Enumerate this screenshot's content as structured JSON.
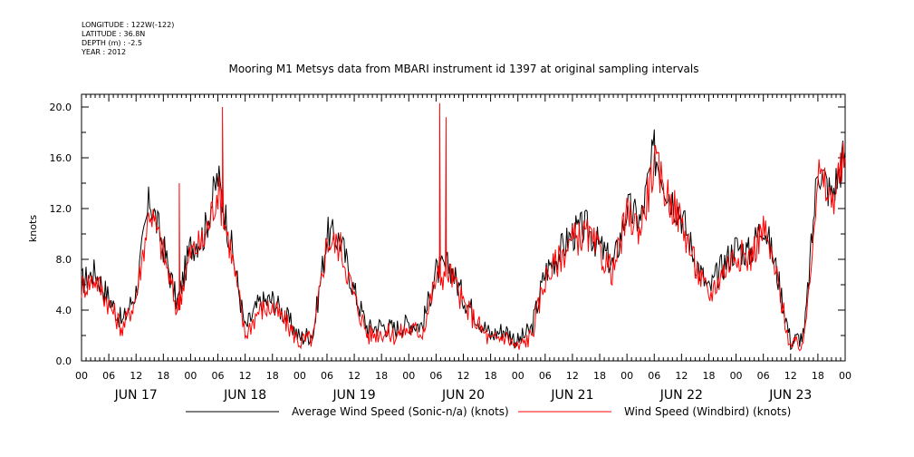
{
  "header": {
    "meta_lines": [
      "LONGITUDE : 122W(-122)",
      "LATITUDE : 36.8N",
      "DEPTH (m) : -2.5",
      "YEAR : 2012"
    ]
  },
  "chart_data": {
    "type": "line",
    "title": "Mooring M1 Metsys data from MBARI instrument id 1397 at original sampling intervals",
    "ylabel": "knots",
    "xlabel": "",
    "ylim": [
      0,
      21
    ],
    "yticks": [
      0,
      4,
      8,
      12,
      16,
      20
    ],
    "ytick_labels": [
      "0.0",
      "4.0",
      "8.0",
      "12.0",
      "16.0",
      "20.0"
    ],
    "xlim": [
      0,
      168
    ],
    "xtick_labels": [
      "00",
      "06",
      "12",
      "18",
      "00",
      "06",
      "12",
      "18",
      "00",
      "06",
      "12",
      "18",
      "00",
      "06",
      "12",
      "18",
      "00",
      "06",
      "12",
      "18",
      "00",
      "06",
      "12",
      "18",
      "00",
      "06",
      "12",
      "18",
      "00"
    ],
    "day_labels": [
      "JUN 17",
      "JUN 18",
      "JUN 19",
      "JUN 20",
      "JUN 21",
      "JUN 22",
      "JUN 23"
    ],
    "x_hours": [
      0,
      3,
      6,
      9,
      12,
      15,
      18,
      21,
      24,
      27,
      30,
      33,
      36,
      39,
      42,
      45,
      48,
      51,
      54,
      57,
      60,
      63,
      66,
      69,
      72,
      75,
      78,
      81,
      84,
      87,
      90,
      93,
      96,
      99,
      102,
      105,
      108,
      111,
      114,
      117,
      120,
      123,
      126,
      129,
      132,
      135,
      138,
      141,
      144,
      147,
      150,
      153,
      156,
      159,
      162,
      165,
      168
    ],
    "series": [
      {
        "name": "Average Wind Speed (Sonic-n/a) (knots)",
        "color": "#000000",
        "values": [
          6.2,
          7.0,
          5.0,
          3.0,
          5.5,
          12.8,
          9.0,
          4.5,
          9.0,
          10.0,
          14.5,
          9.0,
          2.5,
          4.5,
          4.8,
          3.5,
          1.8,
          2.2,
          10.0,
          9.5,
          5.5,
          2.5,
          2.8,
          2.5,
          3.0,
          2.8,
          7.0,
          7.5,
          5.0,
          3.5,
          2.0,
          2.5,
          1.5,
          2.5,
          7.0,
          8.5,
          10.0,
          10.5,
          9.0,
          7.5,
          12.0,
          11.0,
          16.5,
          13.5,
          11.5,
          8.0,
          5.5,
          7.5,
          9.0,
          8.5,
          11.0,
          7.0,
          1.5,
          2.0,
          15.5,
          13.0,
          16.5
        ]
      },
      {
        "name": "Wind Speed (Windbird) (knots)",
        "color": "#ff0000",
        "values": [
          5.8,
          6.5,
          4.5,
          2.5,
          5.0,
          12.0,
          8.5,
          4.0,
          8.5,
          9.5,
          13.5,
          8.5,
          2.0,
          4.0,
          4.2,
          3.0,
          1.5,
          1.8,
          9.5,
          9.0,
          5.0,
          2.0,
          2.3,
          2.0,
          2.5,
          2.3,
          6.5,
          7.0,
          4.5,
          3.0,
          1.5,
          2.0,
          1.0,
          2.0,
          6.5,
          8.0,
          9.5,
          10.0,
          8.5,
          7.0,
          11.5,
          10.5,
          15.5,
          13.0,
          11.0,
          7.5,
          5.0,
          7.0,
          8.5,
          8.0,
          10.5,
          6.5,
          1.0,
          1.5,
          14.8,
          12.5,
          16.0
        ]
      }
    ],
    "spikes": [
      {
        "series": 1,
        "x": 31.0,
        "y": 20.0
      },
      {
        "series": 1,
        "x": 78.8,
        "y": 20.3
      },
      {
        "series": 1,
        "x": 80.2,
        "y": 19.2
      },
      {
        "series": 1,
        "x": 21.5,
        "y": 14.0
      }
    ],
    "legend": [
      "Average Wind Speed (Sonic-n/a) (knots)",
      "Wind Speed (Windbird) (knots)"
    ]
  }
}
